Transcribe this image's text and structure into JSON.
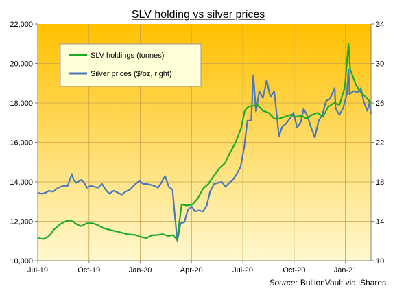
{
  "chart_data": {
    "type": "line",
    "title": "SLV holding vs silver prices",
    "source_prefix": "Source:",
    "source_text": "BullionVault via iShares",
    "x_tick_labels": [
      "Jul-19",
      "Oct-19",
      "Jan-20",
      "Apr-20",
      "Jul-20",
      "Oct-20",
      "Jan-21"
    ],
    "xlim": [
      "2019-07-01",
      "2021-03-15"
    ],
    "y_left": {
      "ticks": [
        "10,000",
        "12,000",
        "14,000",
        "16,000",
        "18,000",
        "20,000",
        "22,000"
      ],
      "ylim": [
        10000,
        22000
      ]
    },
    "y_right": {
      "ticks": [
        "10",
        "14",
        "18",
        "22",
        "26",
        "30",
        "34"
      ],
      "ylim": [
        10,
        34
      ]
    },
    "grid": true,
    "legend_position": "top-left",
    "colors": {
      "holdings": "#1aab2a",
      "price": "#4a78b8",
      "bg_top": "#ffc000",
      "bg_bottom": "#fff8d0"
    },
    "series": [
      {
        "name": "SLV holdings (tonnes)",
        "axis": "left",
        "points": [
          [
            "2019-07-01",
            11150
          ],
          [
            "2019-07-12",
            11100
          ],
          [
            "2019-07-22",
            11250
          ],
          [
            "2019-08-01",
            11600
          ],
          [
            "2019-08-12",
            11850
          ],
          [
            "2019-08-22",
            12000
          ],
          [
            "2019-09-01",
            12050
          ],
          [
            "2019-09-12",
            11850
          ],
          [
            "2019-09-20",
            11750
          ],
          [
            "2019-10-01",
            11900
          ],
          [
            "2019-10-12",
            11900
          ],
          [
            "2019-10-22",
            11800
          ],
          [
            "2019-11-01",
            11650
          ],
          [
            "2019-11-15",
            11550
          ],
          [
            "2019-12-01",
            11450
          ],
          [
            "2019-12-15",
            11350
          ],
          [
            "2020-01-01",
            11300
          ],
          [
            "2020-01-10",
            11200
          ],
          [
            "2020-01-20",
            11150
          ],
          [
            "2020-02-01",
            11300
          ],
          [
            "2020-02-10",
            11300
          ],
          [
            "2020-02-20",
            11350
          ],
          [
            "2020-03-01",
            11250
          ],
          [
            "2020-03-10",
            11300
          ],
          [
            "2020-03-18",
            11050
          ],
          [
            "2020-03-22",
            12000
          ],
          [
            "2020-03-26",
            12850
          ],
          [
            "2020-04-05",
            12800
          ],
          [
            "2020-04-15",
            12850
          ],
          [
            "2020-04-25",
            13150
          ],
          [
            "2020-05-05",
            13650
          ],
          [
            "2020-05-15",
            13900
          ],
          [
            "2020-05-25",
            14300
          ],
          [
            "2020-06-05",
            14700
          ],
          [
            "2020-06-15",
            14950
          ],
          [
            "2020-06-25",
            15500
          ],
          [
            "2020-07-05",
            16000
          ],
          [
            "2020-07-15",
            16700
          ],
          [
            "2020-07-22",
            17600
          ],
          [
            "2020-07-28",
            17800
          ],
          [
            "2020-08-05",
            17850
          ],
          [
            "2020-08-15",
            17900
          ],
          [
            "2020-08-25",
            17600
          ],
          [
            "2020-09-05",
            17500
          ],
          [
            "2020-09-15",
            17200
          ],
          [
            "2020-09-25",
            17200
          ],
          [
            "2020-10-05",
            17300
          ],
          [
            "2020-10-15",
            17400
          ],
          [
            "2020-10-25",
            17300
          ],
          [
            "2020-11-05",
            17350
          ],
          [
            "2020-11-15",
            17200
          ],
          [
            "2020-11-25",
            17400
          ],
          [
            "2020-12-05",
            17500
          ],
          [
            "2020-12-15",
            17300
          ],
          [
            "2020-12-25",
            17800
          ],
          [
            "2021-01-05",
            18000
          ],
          [
            "2021-01-15",
            17900
          ],
          [
            "2021-01-25",
            18800
          ],
          [
            "2021-02-01",
            21000
          ],
          [
            "2021-02-04",
            19700
          ],
          [
            "2021-02-15",
            18900
          ],
          [
            "2021-02-25",
            18500
          ],
          [
            "2021-03-05",
            18300
          ],
          [
            "2021-03-15",
            18000
          ]
        ]
      },
      {
        "name": "Silver prices ($/oz, right)",
        "axis": "right",
        "points": [
          [
            "2019-07-01",
            16.9
          ],
          [
            "2019-07-08",
            16.8
          ],
          [
            "2019-07-16",
            16.9
          ],
          [
            "2019-07-22",
            17.1
          ],
          [
            "2019-07-30",
            17.0
          ],
          [
            "2019-08-05",
            17.3
          ],
          [
            "2019-08-12",
            17.5
          ],
          [
            "2019-08-20",
            17.6
          ],
          [
            "2019-08-26",
            17.6
          ],
          [
            "2019-09-03",
            18.8
          ],
          [
            "2019-09-06",
            18.2
          ],
          [
            "2019-09-12",
            17.9
          ],
          [
            "2019-09-20",
            18.2
          ],
          [
            "2019-09-26",
            17.9
          ],
          [
            "2019-10-01",
            17.4
          ],
          [
            "2019-10-08",
            17.6
          ],
          [
            "2019-10-15",
            17.5
          ],
          [
            "2019-10-22",
            17.4
          ],
          [
            "2019-10-29",
            17.8
          ],
          [
            "2019-11-05",
            17.2
          ],
          [
            "2019-11-12",
            16.8
          ],
          [
            "2019-11-20",
            17.1
          ],
          [
            "2019-11-28",
            16.9
          ],
          [
            "2019-12-05",
            16.7
          ],
          [
            "2019-12-12",
            17.0
          ],
          [
            "2019-12-20",
            17.2
          ],
          [
            "2019-12-31",
            17.8
          ],
          [
            "2020-01-07",
            18.1
          ],
          [
            "2020-01-14",
            17.8
          ],
          [
            "2020-01-21",
            17.8
          ],
          [
            "2020-01-28",
            17.7
          ],
          [
            "2020-02-04",
            17.6
          ],
          [
            "2020-02-11",
            17.4
          ],
          [
            "2020-02-18",
            18.0
          ],
          [
            "2020-02-24",
            18.6
          ],
          [
            "2020-03-02",
            17.5
          ],
          [
            "2020-03-09",
            17.2
          ],
          [
            "2020-03-13",
            14.8
          ],
          [
            "2020-03-18",
            12.0
          ],
          [
            "2020-03-24",
            13.8
          ],
          [
            "2020-03-31",
            13.9
          ],
          [
            "2020-04-07",
            15.2
          ],
          [
            "2020-04-14",
            15.5
          ],
          [
            "2020-04-20",
            15.0
          ],
          [
            "2020-04-27",
            15.1
          ],
          [
            "2020-05-05",
            15.0
          ],
          [
            "2020-05-12",
            15.6
          ],
          [
            "2020-05-18",
            17.0
          ],
          [
            "2020-05-26",
            17.8
          ],
          [
            "2020-06-02",
            17.9
          ],
          [
            "2020-06-09",
            18.0
          ],
          [
            "2020-06-16",
            17.5
          ],
          [
            "2020-06-23",
            17.9
          ],
          [
            "2020-06-30",
            18.2
          ],
          [
            "2020-07-07",
            18.8
          ],
          [
            "2020-07-14",
            19.5
          ],
          [
            "2020-07-21",
            21.5
          ],
          [
            "2020-07-27",
            24.2
          ],
          [
            "2020-08-03",
            24.2
          ],
          [
            "2020-08-07",
            28.8
          ],
          [
            "2020-08-12",
            25.1
          ],
          [
            "2020-08-18",
            27.2
          ],
          [
            "2020-08-25",
            26.5
          ],
          [
            "2020-09-01",
            28.3
          ],
          [
            "2020-09-08",
            26.6
          ],
          [
            "2020-09-15",
            27.2
          ],
          [
            "2020-09-21",
            24.2
          ],
          [
            "2020-09-24",
            22.6
          ],
          [
            "2020-09-30",
            23.6
          ],
          [
            "2020-10-07",
            23.9
          ],
          [
            "2020-10-14",
            24.4
          ],
          [
            "2020-10-21",
            25.0
          ],
          [
            "2020-10-28",
            23.5
          ],
          [
            "2020-11-04",
            24.1
          ],
          [
            "2020-11-09",
            25.4
          ],
          [
            "2020-11-16",
            24.7
          ],
          [
            "2020-11-23",
            23.5
          ],
          [
            "2020-11-30",
            22.5
          ],
          [
            "2020-12-07",
            24.2
          ],
          [
            "2020-12-14",
            24.8
          ],
          [
            "2020-12-21",
            26.2
          ],
          [
            "2020-12-28",
            26.4
          ],
          [
            "2021-01-06",
            27.5
          ],
          [
            "2021-01-08",
            25.4
          ],
          [
            "2021-01-15",
            24.8
          ],
          [
            "2021-01-22",
            25.5
          ],
          [
            "2021-01-29",
            26.9
          ],
          [
            "2021-02-01",
            29.4
          ],
          [
            "2021-02-03",
            26.9
          ],
          [
            "2021-02-10",
            27.2
          ],
          [
            "2021-02-18",
            27.1
          ],
          [
            "2021-02-24",
            27.5
          ],
          [
            "2021-03-01",
            26.2
          ],
          [
            "2021-03-08",
            25.2
          ],
          [
            "2021-03-12",
            26.0
          ],
          [
            "2021-03-15",
            24.9
          ]
        ]
      }
    ]
  }
}
